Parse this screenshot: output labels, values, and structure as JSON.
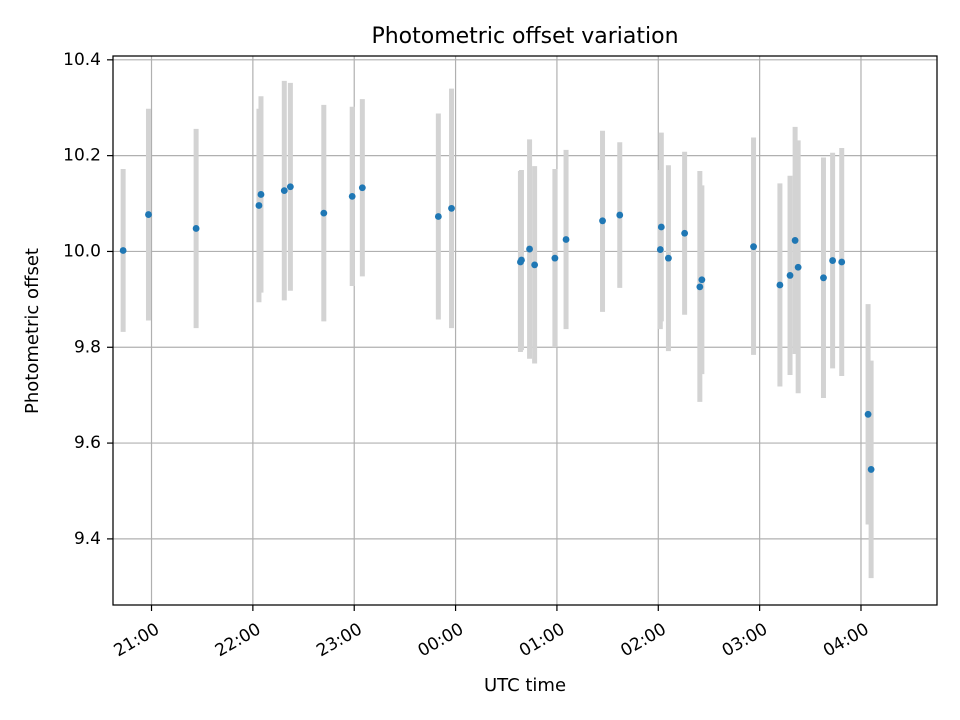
{
  "chart_data": {
    "type": "scatter",
    "title": "Photometric offset variation",
    "xlabel": "UTC time",
    "ylabel": "Photometric offset",
    "x_unit": "UTC hour (20.0 = 20:00, 24.0 = 00:00 next day)",
    "xlim": [
      20.62,
      28.75
    ],
    "ylim": [
      9.262,
      10.408
    ],
    "grid": true,
    "x_ticks": [
      {
        "value": 21,
        "label": "21:00"
      },
      {
        "value": 22,
        "label": "22:00"
      },
      {
        "value": 23,
        "label": "23:00"
      },
      {
        "value": 24,
        "label": "00:00"
      },
      {
        "value": 25,
        "label": "01:00"
      },
      {
        "value": 26,
        "label": "02:00"
      },
      {
        "value": 27,
        "label": "03:00"
      },
      {
        "value": 28,
        "label": "04:00"
      }
    ],
    "y_ticks": [
      {
        "value": 9.4,
        "label": "9.4"
      },
      {
        "value": 9.6,
        "label": "9.6"
      },
      {
        "value": 9.8,
        "label": "9.8"
      },
      {
        "value": 10.0,
        "label": "10.0"
      },
      {
        "value": 10.2,
        "label": "10.2"
      },
      {
        "value": 10.4,
        "label": "10.4"
      }
    ],
    "series": [
      {
        "marker_color": "#1f77b4",
        "errorbar_color": "#d3d3d3",
        "points": [
          {
            "x": 20.72,
            "y": 10.002,
            "lo": 9.832,
            "hi": 10.172
          },
          {
            "x": 20.97,
            "y": 10.077,
            "lo": 9.856,
            "hi": 10.298
          },
          {
            "x": 21.44,
            "y": 10.048,
            "lo": 9.84,
            "hi": 10.256
          },
          {
            "x": 22.06,
            "y": 10.096,
            "lo": 9.894,
            "hi": 10.298
          },
          {
            "x": 22.08,
            "y": 10.119,
            "lo": 9.914,
            "hi": 10.324
          },
          {
            "x": 22.31,
            "y": 10.127,
            "lo": 9.898,
            "hi": 10.356
          },
          {
            "x": 22.37,
            "y": 10.135,
            "lo": 9.918,
            "hi": 10.352
          },
          {
            "x": 22.7,
            "y": 10.08,
            "lo": 9.854,
            "hi": 10.306
          },
          {
            "x": 22.98,
            "y": 10.115,
            "lo": 9.928,
            "hi": 10.302
          },
          {
            "x": 23.08,
            "y": 10.133,
            "lo": 9.948,
            "hi": 10.318
          },
          {
            "x": 23.83,
            "y": 10.073,
            "lo": 9.858,
            "hi": 10.288
          },
          {
            "x": 23.96,
            "y": 10.09,
            "lo": 9.84,
            "hi": 10.34
          },
          {
            "x": 24.64,
            "y": 9.978,
            "lo": 9.79,
            "hi": 10.168
          },
          {
            "x": 24.65,
            "y": 9.982,
            "lo": 9.794,
            "hi": 10.17
          },
          {
            "x": 24.73,
            "y": 10.005,
            "lo": 9.776,
            "hi": 10.234
          },
          {
            "x": 24.78,
            "y": 9.972,
            "lo": 9.766,
            "hi": 10.178
          },
          {
            "x": 24.98,
            "y": 9.986,
            "lo": 9.8,
            "hi": 10.172
          },
          {
            "x": 25.09,
            "y": 10.025,
            "lo": 9.838,
            "hi": 10.212
          },
          {
            "x": 25.45,
            "y": 10.064,
            "lo": 9.874,
            "hi": 10.252
          },
          {
            "x": 25.62,
            "y": 10.076,
            "lo": 9.924,
            "hi": 10.228
          },
          {
            "x": 26.02,
            "y": 10.004,
            "lo": 9.838,
            "hi": 10.17
          },
          {
            "x": 26.03,
            "y": 10.051,
            "lo": 9.854,
            "hi": 10.248
          },
          {
            "x": 26.1,
            "y": 9.986,
            "lo": 9.792,
            "hi": 10.18
          },
          {
            "x": 26.26,
            "y": 10.038,
            "lo": 9.868,
            "hi": 10.208
          },
          {
            "x": 26.41,
            "y": 9.926,
            "lo": 9.686,
            "hi": 10.168
          },
          {
            "x": 26.43,
            "y": 9.941,
            "lo": 9.744,
            "hi": 10.138
          },
          {
            "x": 26.94,
            "y": 10.01,
            "lo": 9.784,
            "hi": 10.238
          },
          {
            "x": 27.2,
            "y": 9.93,
            "lo": 9.718,
            "hi": 10.142
          },
          {
            "x": 27.3,
            "y": 9.95,
            "lo": 9.742,
            "hi": 10.158
          },
          {
            "x": 27.35,
            "y": 10.023,
            "lo": 9.786,
            "hi": 10.26
          },
          {
            "x": 27.38,
            "y": 9.967,
            "lo": 9.704,
            "hi": 10.232
          },
          {
            "x": 27.63,
            "y": 9.945,
            "lo": 9.694,
            "hi": 10.196
          },
          {
            "x": 27.72,
            "y": 9.981,
            "lo": 9.756,
            "hi": 10.206
          },
          {
            "x": 27.81,
            "y": 9.978,
            "lo": 9.74,
            "hi": 10.216
          },
          {
            "x": 28.07,
            "y": 9.66,
            "lo": 9.43,
            "hi": 9.89
          },
          {
            "x": 28.1,
            "y": 9.545,
            "lo": 9.318,
            "hi": 9.772
          }
        ]
      }
    ]
  }
}
